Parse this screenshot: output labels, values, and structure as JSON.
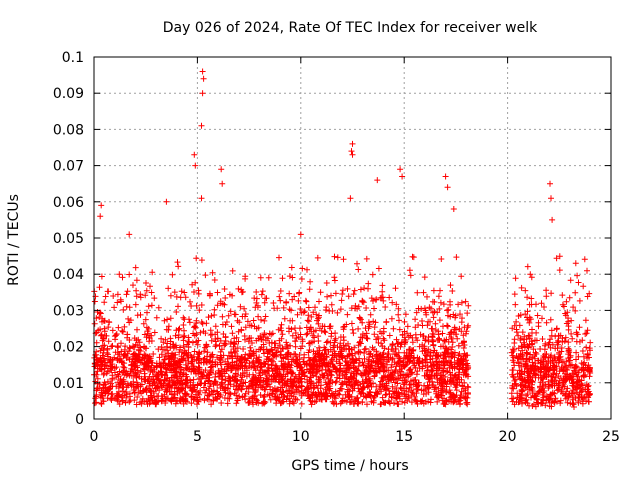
{
  "chart_data": {
    "type": "scatter",
    "title": "Day 026 of 2024, Rate Of TEC Index for receiver welk",
    "xlabel": "GPS time / hours",
    "ylabel": "ROTI / TECUs",
    "xlim": [
      0,
      25
    ],
    "ylim": [
      0,
      0.1
    ],
    "xticks": [
      0,
      5,
      10,
      15,
      20,
      25
    ],
    "yticks": [
      0,
      0.01,
      0.02,
      0.03,
      0.04,
      0.05,
      0.06,
      0.07,
      0.08,
      0.09,
      0.1
    ],
    "xtick_labels": [
      "0",
      "5",
      "10",
      "15",
      "20",
      "25"
    ],
    "ytick_labels": [
      "0",
      "0.01",
      "0.02",
      "0.03",
      "0.04",
      "0.05",
      "0.06",
      "0.07",
      "0.08",
      "0.09",
      "0.1"
    ],
    "grid": true,
    "marker": "+",
    "marker_color": "#ff0000",
    "data_gap_hours": [
      18.1,
      20.2
    ],
    "notable_points": [
      {
        "x": 5.25,
        "y": 0.096
      },
      {
        "x": 5.3,
        "y": 0.094
      },
      {
        "x": 5.25,
        "y": 0.09
      },
      {
        "x": 5.2,
        "y": 0.081
      },
      {
        "x": 4.85,
        "y": 0.073
      },
      {
        "x": 4.9,
        "y": 0.07
      },
      {
        "x": 12.5,
        "y": 0.076
      },
      {
        "x": 12.45,
        "y": 0.074
      },
      {
        "x": 12.5,
        "y": 0.073
      },
      {
        "x": 6.15,
        "y": 0.069
      },
      {
        "x": 6.2,
        "y": 0.065
      },
      {
        "x": 14.8,
        "y": 0.069
      },
      {
        "x": 14.9,
        "y": 0.067
      },
      {
        "x": 17.0,
        "y": 0.067
      },
      {
        "x": 17.1,
        "y": 0.064
      },
      {
        "x": 13.7,
        "y": 0.066
      },
      {
        "x": 22.05,
        "y": 0.065
      },
      {
        "x": 22.1,
        "y": 0.061
      },
      {
        "x": 5.2,
        "y": 0.061
      },
      {
        "x": 12.4,
        "y": 0.061
      },
      {
        "x": 3.5,
        "y": 0.06
      },
      {
        "x": 0.35,
        "y": 0.059
      },
      {
        "x": 0.3,
        "y": 0.056
      },
      {
        "x": 17.4,
        "y": 0.058
      },
      {
        "x": 22.15,
        "y": 0.055
      },
      {
        "x": 10.0,
        "y": 0.051
      },
      {
        "x": 1.7,
        "y": 0.051
      },
      {
        "x": 23.3,
        "y": 0.043
      },
      {
        "x": 21.1,
        "y": 0.04
      }
    ]
  }
}
